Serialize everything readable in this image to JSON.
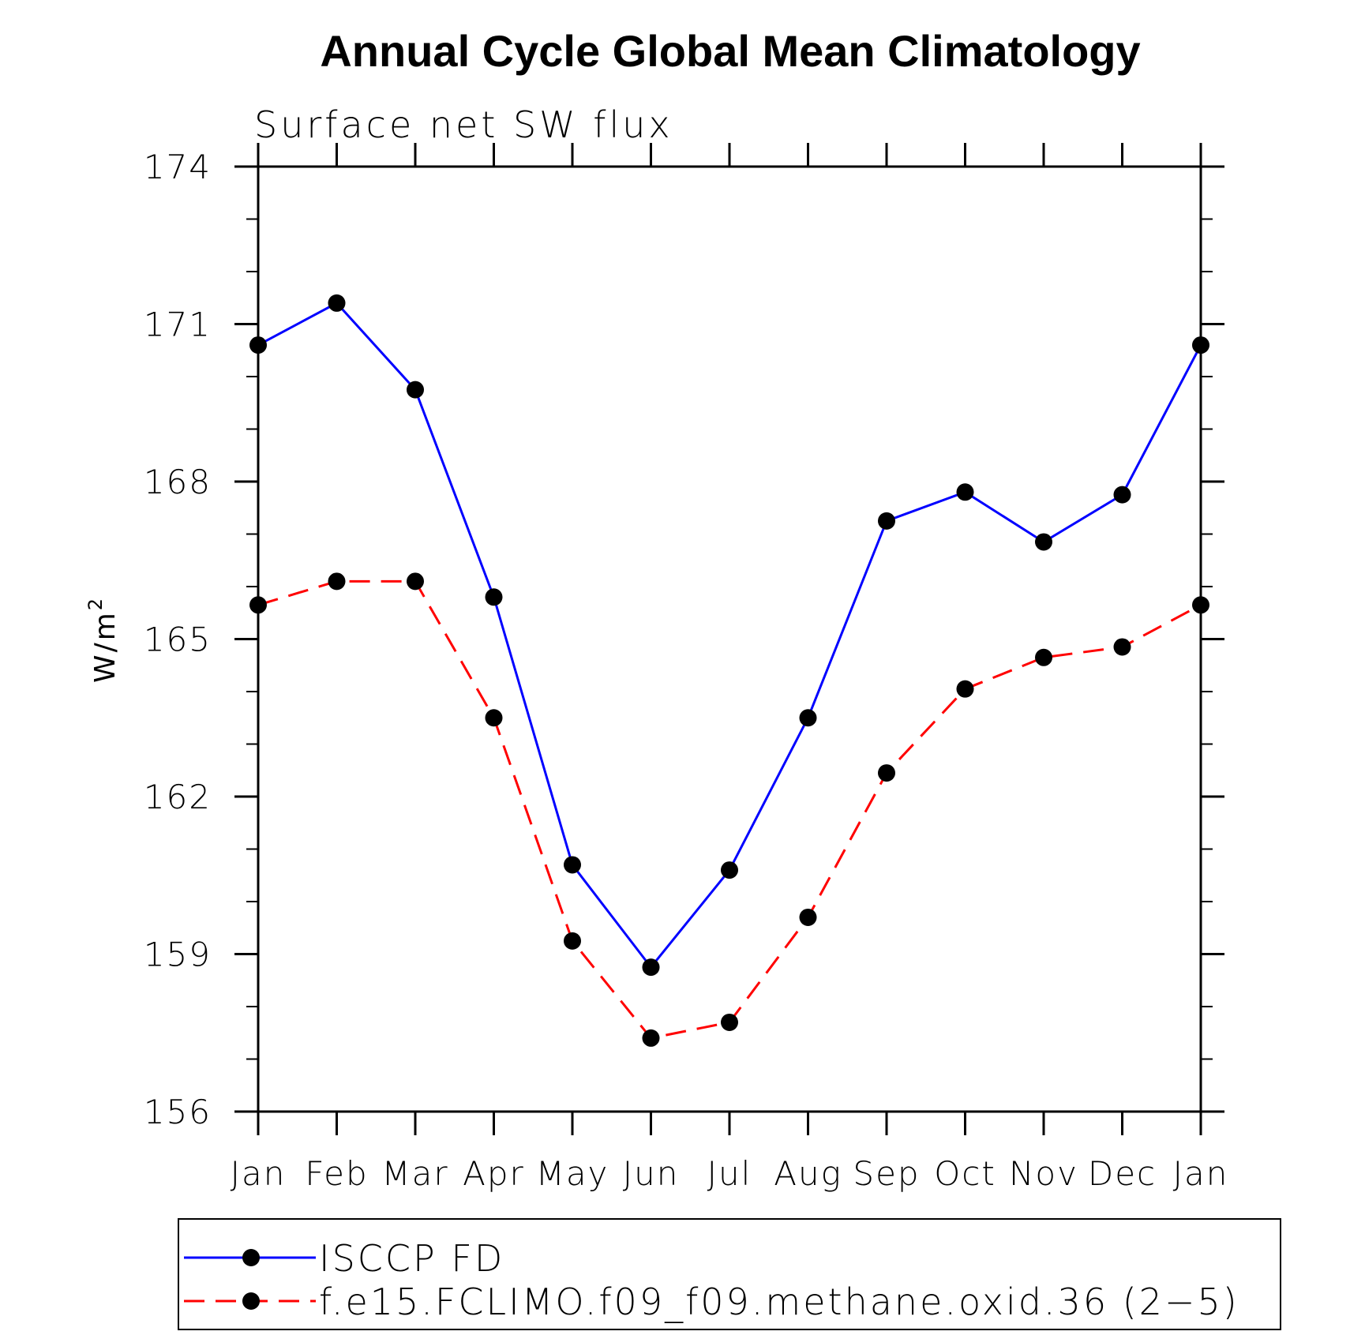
{
  "chart_data": {
    "type": "line",
    "title": "Annual Cycle Global Mean Climatology",
    "subtitle": "Surface net SW flux",
    "ylabel": "W/m",
    "ylabel_superscript": "2",
    "xlabel": "",
    "categories": [
      "Jan",
      "Feb",
      "Mar",
      "Apr",
      "May",
      "Jun",
      "Jul",
      "Aug",
      "Sep",
      "Oct",
      "Nov",
      "Dec",
      "Jan"
    ],
    "ylim": [
      156,
      174
    ],
    "yticks": [
      "156",
      "159",
      "162",
      "165",
      "168",
      "171",
      "174"
    ],
    "legend_placement": "bottom",
    "grid": false,
    "series": [
      {
        "name": "ISCCP FD",
        "color": "#0000ff",
        "dash": "solid",
        "values": [
          170.6,
          171.4,
          169.75,
          165.8,
          160.7,
          158.75,
          160.6,
          163.5,
          167.25,
          167.8,
          166.85,
          167.75,
          170.6
        ]
      },
      {
        "name": "f.e15.FCLIMO.f09_f09.methane.oxid.36 (2−5)",
        "color": "#ff0000",
        "dash": "dashed",
        "values": [
          165.65,
          166.1,
          166.1,
          163.5,
          159.25,
          157.4,
          157.7,
          159.7,
          162.45,
          164.05,
          164.65,
          164.85,
          165.65
        ]
      }
    ]
  }
}
